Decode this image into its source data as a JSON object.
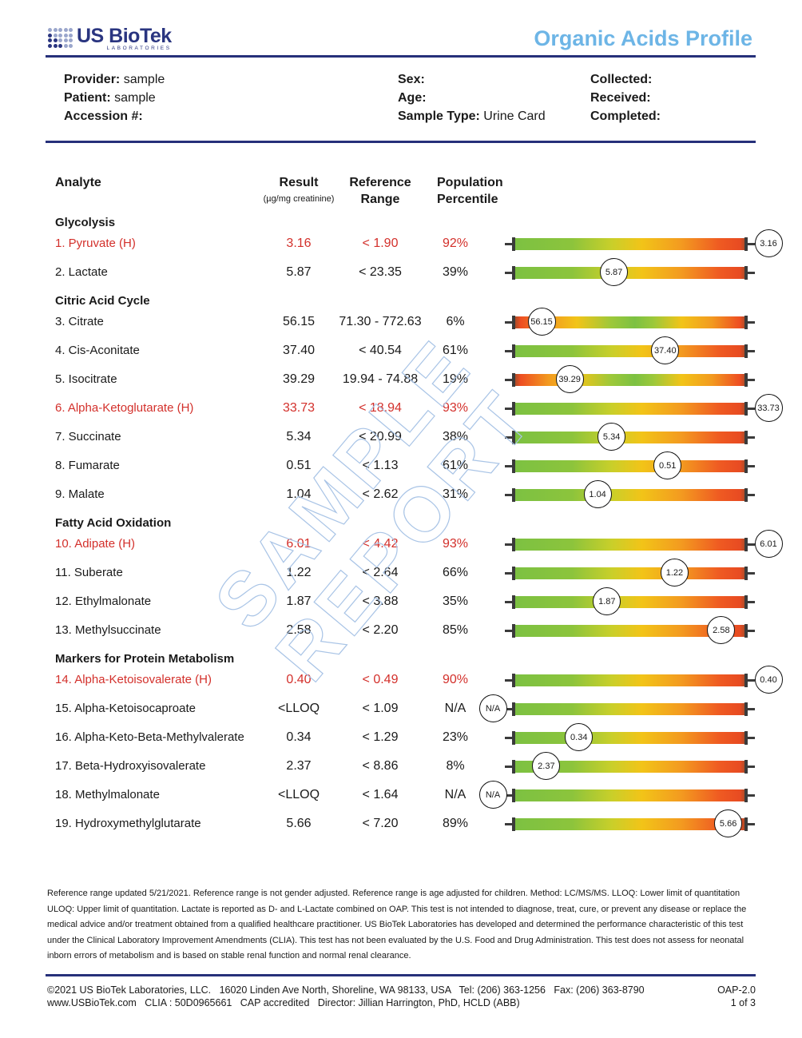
{
  "header": {
    "logo_brand": "US BioTek",
    "logo_sub": "LABORATORIES",
    "title": "Organic Acids Profile"
  },
  "patient": {
    "provider_label": "Provider:",
    "provider": "sample",
    "patient_label": "Patient:",
    "patient": "sample",
    "accession_label": "Accession #:",
    "accession": "",
    "sex_label": "Sex:",
    "age_label": "Age:",
    "sample_type_label": "Sample Type:",
    "sample_type": "Urine Card",
    "collected_label": "Collected:",
    "received_label": "Received:",
    "completed_label": "Completed:"
  },
  "table": {
    "col_analyte": "Analyte",
    "col_result": "Result",
    "col_units": "(µg/mg creatinine)",
    "col_ref1": "Reference",
    "col_ref2": "Range",
    "col_pop1": "Population",
    "col_pop2": "Percentile"
  },
  "sections": [
    {
      "title": "Glycolysis",
      "rows": [
        {
          "name": "1. Pyruvate (H)",
          "result": "3.16",
          "ref": "< 1.90",
          "pct": "92%",
          "pct_value": 92,
          "high": true,
          "scale": "upper",
          "marker": "3.16"
        },
        {
          "name": "2. Lactate",
          "result": "5.87",
          "ref": "< 23.35",
          "pct": "39%",
          "pct_value": 43,
          "high": false,
          "scale": "upper",
          "marker": "5.87"
        }
      ]
    },
    {
      "title": "Citric Acid Cycle",
      "rows": [
        {
          "name": "3. Citrate",
          "result": "56.15",
          "ref": "71.30 - 772.63",
          "pct": "6%",
          "pct_value": 12,
          "high": false,
          "scale": "range",
          "marker": "56.15"
        },
        {
          "name": "4. Cis-Aconitate",
          "result": "37.40",
          "ref": "< 40.54",
          "pct": "61%",
          "pct_value": 65,
          "high": false,
          "scale": "upper",
          "marker": "37.40"
        },
        {
          "name": "5. Isocitrate",
          "result": "39.29",
          "ref": "19.94 - 74.88",
          "pct": "19%",
          "pct_value": 24,
          "high": false,
          "scale": "range",
          "marker": "39.29"
        },
        {
          "name": "6. Alpha-Ketoglutarate (H)",
          "result": "33.73",
          "ref": "< 18.94",
          "pct": "93%",
          "pct_value": 93,
          "high": true,
          "scale": "upper",
          "marker": "33.73"
        },
        {
          "name": "7. Succinate",
          "result": "5.34",
          "ref": "< 20.99",
          "pct": "38%",
          "pct_value": 42,
          "high": false,
          "scale": "upper",
          "marker": "5.34"
        },
        {
          "name": "8. Fumarate",
          "result": "0.51",
          "ref": "< 1.13",
          "pct": "61%",
          "pct_value": 66,
          "high": false,
          "scale": "upper",
          "marker": "0.51"
        },
        {
          "name": "9. Malate",
          "result": "1.04",
          "ref": "< 2.62",
          "pct": "31%",
          "pct_value": 36,
          "high": false,
          "scale": "upper",
          "marker": "1.04"
        }
      ]
    },
    {
      "title": "Fatty Acid Oxidation",
      "rows": [
        {
          "name": "10. Adipate (H)",
          "result": "6.01",
          "ref": "< 4.42",
          "pct": "93%",
          "pct_value": 93,
          "high": true,
          "scale": "upper",
          "marker": "6.01"
        },
        {
          "name": "11. Suberate",
          "result": "1.22",
          "ref": "< 2.64",
          "pct": "66%",
          "pct_value": 69,
          "high": false,
          "scale": "upper",
          "marker": "1.22"
        },
        {
          "name": "12. Ethylmalonate",
          "result": "1.87",
          "ref": "< 3.88",
          "pct": "35%",
          "pct_value": 40,
          "high": false,
          "scale": "upper",
          "marker": "1.87"
        },
        {
          "name": "13. Methylsuccinate",
          "result": "2.58",
          "ref": "< 2.20",
          "pct": "85%",
          "pct_value": 89,
          "high": false,
          "scale": "upper",
          "marker": "2.58"
        }
      ]
    },
    {
      "title": "Markers for Protein Metabolism",
      "rows": [
        {
          "name": "14. Alpha-Ketoisovalerate (H)",
          "result": "0.40",
          "ref": "< 0.49",
          "pct": "90%",
          "pct_value": 90,
          "high": true,
          "scale": "upper",
          "marker": "0.40"
        },
        {
          "name": "15. Alpha-Ketoisocaproate",
          "result": "<LLOQ",
          "ref": "< 1.09",
          "pct": "N/A",
          "pct_value": null,
          "high": false,
          "scale": "upper",
          "marker": "N/A"
        },
        {
          "name": "16. Alpha-Keto-Beta-Methylvalerate",
          "result": "0.34",
          "ref": "< 1.29",
          "pct": "23%",
          "pct_value": 28,
          "high": false,
          "scale": "upper",
          "marker": "0.34"
        },
        {
          "name": "17. Beta-Hydroxyisovalerate",
          "result": "2.37",
          "ref": "< 8.86",
          "pct": "8%",
          "pct_value": 14,
          "high": false,
          "scale": "upper",
          "marker": "2.37"
        },
        {
          "name": "18. Methylmalonate",
          "result": "<LLOQ",
          "ref": "< 1.64",
          "pct": "N/A",
          "pct_value": null,
          "high": false,
          "scale": "upper",
          "marker": "N/A"
        },
        {
          "name": "19. Hydroxymethylglutarate",
          "result": "5.66",
          "ref": "< 7.20",
          "pct": "89%",
          "pct_value": 92,
          "high": false,
          "scale": "upper",
          "marker": "5.66"
        }
      ]
    }
  ],
  "watermark": {
    "line1": "SAMPLE",
    "line2": "REPORT"
  },
  "notes": "Reference range updated 5/21/2021. Reference range is not gender adjusted. Reference range is age adjusted for children. Method: LC/MS/MS. LLOQ: Lower limit of quantitation ULOQ: Upper limit of quantitation. Lactate is reported as D- and L-Lactate combined on OAP. This test is not intended to diagnose, treat, cure, or prevent any disease or replace the medical advice and/or treatment obtained from a qualified healthcare practitioner. US BioTek Laboratories has developed and determined the performance characteristic of this test under the Clinical Laboratory Improvement Amendments (CLIA). This test has not been evaluated by the U.S. Food and Drug Administration. This test does not assess for neonatal inborn errors of metabolism and is based on stable renal function and normal renal clearance.",
  "footer": {
    "line1": "©2021 US BioTek Laboratories, LLC.   16020 Linden Ave North, Shoreline, WA 98133, USA   Tel: (206) 363-1256   Fax: (206) 363-8790",
    "line2": "www.USBioTek.com   CLIA : 50D0965661   CAP accredited   Director: Jillian Harrington, PhD, HCLD (ABB)",
    "code": "OAP-2.0",
    "page": "1 of 3"
  },
  "colors": {
    "navy": "#26307a",
    "title": "#6db5e6",
    "high": "#d3302b"
  }
}
